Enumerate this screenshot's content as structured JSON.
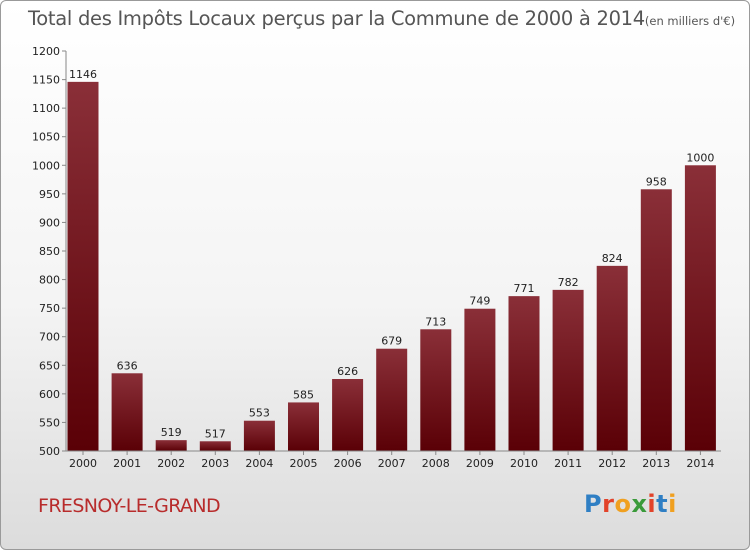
{
  "title": {
    "main": "Total des Impôts Locaux perçus par la Commune de 2000 à 2014",
    "unit": "(en milliers d'€)"
  },
  "commune": "FRESNOY-LE-GRAND",
  "logo": {
    "text": "Proxiti",
    "letters": [
      {
        "ch": "P",
        "color": "#2f7fc4"
      },
      {
        "ch": "r",
        "color": "#e2432a"
      },
      {
        "ch": "o",
        "color": "#f0a020"
      },
      {
        "ch": "x",
        "color": "#3a9a3a"
      },
      {
        "ch": "i",
        "color": "#e2432a"
      },
      {
        "ch": "t",
        "color": "#2f7fc4"
      },
      {
        "ch": "i",
        "color": "#f0a020"
      }
    ]
  },
  "colors": {
    "bar_top": "#8a2f38",
    "bar_bottom": "#5a0006",
    "axis": "#888888",
    "commune_text": "#b82c2c",
    "title_text": "#555555"
  },
  "chart_data": {
    "type": "bar",
    "categories": [
      "2000",
      "2001",
      "2002",
      "2003",
      "2004",
      "2005",
      "2006",
      "2007",
      "2008",
      "2009",
      "2010",
      "2011",
      "2012",
      "2013",
      "2014"
    ],
    "values": [
      1146,
      636,
      519,
      517,
      553,
      585,
      626,
      679,
      713,
      749,
      771,
      782,
      824,
      958,
      1000
    ],
    "ylim": [
      500,
      1200
    ],
    "yticks": [
      500,
      550,
      600,
      650,
      700,
      750,
      800,
      850,
      900,
      950,
      1000,
      1050,
      1100,
      1150,
      1200
    ],
    "grid": false,
    "data_labels": true
  }
}
